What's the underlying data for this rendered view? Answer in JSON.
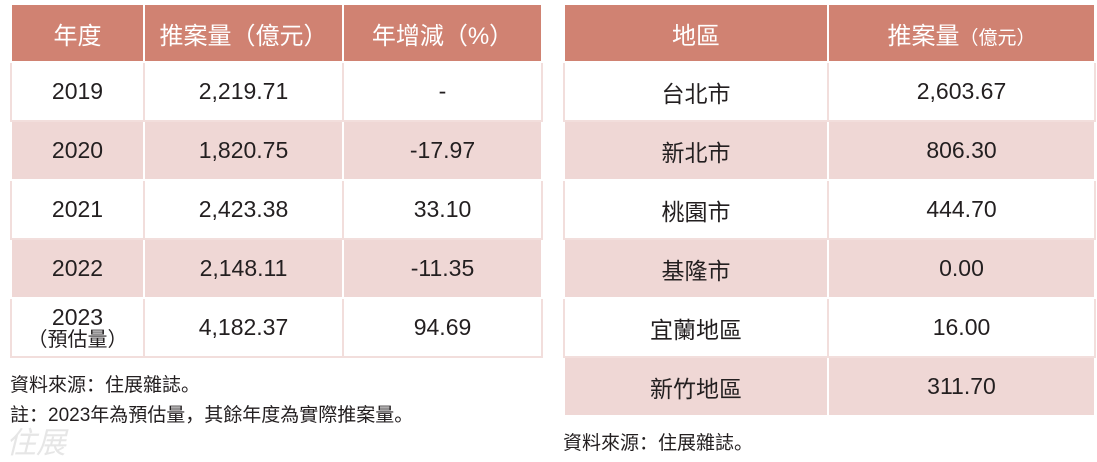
{
  "left_table": {
    "headers": [
      "年度",
      "推案量（億元）",
      "年增減（%）"
    ],
    "rows": [
      {
        "year": "2019",
        "sub": "",
        "amount": "2,219.71",
        "change": "-"
      },
      {
        "year": "2020",
        "sub": "",
        "amount": "1,820.75",
        "change": "-17.97"
      },
      {
        "year": "2021",
        "sub": "",
        "amount": "2,423.38",
        "change": "33.10"
      },
      {
        "year": "2022",
        "sub": "",
        "amount": "2,148.11",
        "change": "-11.35"
      },
      {
        "year": "2023",
        "sub": "（預估量）",
        "amount": "4,182.37",
        "change": "94.69"
      }
    ],
    "source": "資料來源：住展雜誌。",
    "note": "註：2023年為預估量，其餘年度為實際推案量。"
  },
  "right_table": {
    "headers": [
      "地區",
      "推案量",
      "（億元）"
    ],
    "rows": [
      {
        "region": "台北市",
        "amount": "2,603.67"
      },
      {
        "region": "新北市",
        "amount": "806.30"
      },
      {
        "region": "桃園市",
        "amount": "444.70"
      },
      {
        "region": "基隆市",
        "amount": "0.00"
      },
      {
        "region": "宜蘭地區",
        "amount": "16.00"
      },
      {
        "region": "新竹地區",
        "amount": "311.70"
      }
    ],
    "source": "資料來源：住展雜誌。"
  },
  "watermark": "住展",
  "colors": {
    "header": "#d08272",
    "stripe": "#efd7d5"
  }
}
